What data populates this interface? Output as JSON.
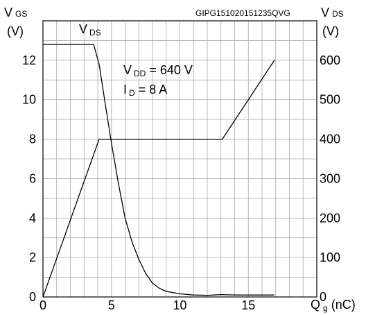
{
  "watermark": "GIPG151020151235QVG",
  "chart_data": {
    "type": "line",
    "left_axis": {
      "label_main": "V",
      "label_sub": "GS",
      "unit": "(V)",
      "range": [
        0,
        14
      ],
      "ticks": [
        0,
        2,
        4,
        6,
        8,
        10,
        12
      ],
      "grid_step": 1
    },
    "right_axis": {
      "label_main": "V",
      "label_sub": "DS",
      "unit": "(V)",
      "range": [
        0,
        700
      ],
      "ticks": [
        0,
        100,
        200,
        300,
        400,
        500,
        600
      ]
    },
    "x_axis": {
      "label_main": "Q",
      "label_sub": "g",
      "unit": "(nC)",
      "range": [
        0,
        20
      ],
      "ticks": [
        0,
        5,
        10,
        15
      ],
      "grid_step": 1
    },
    "grid": true,
    "annotations": [
      {
        "main": "V",
        "sub": "DD",
        "rest": " = 640 V"
      },
      {
        "main": "I",
        "sub": "D",
        "rest": " = 8 A"
      }
    ],
    "series_label": {
      "main": "V",
      "sub": "DS"
    },
    "series": [
      {
        "axis": "left",
        "x": [
          0,
          4.1,
          13.1,
          16.9
        ],
        "y": [
          0,
          8,
          8,
          12
        ]
      },
      {
        "axis": "right",
        "x": [
          0,
          3.7,
          4.1,
          4.5,
          5.0,
          5.5,
          6.0,
          6.5,
          7.0,
          7.5,
          8.0,
          8.5,
          9.0,
          10.0,
          11.0,
          12.0,
          13.0,
          14.0,
          16.9
        ],
        "y": [
          640,
          640,
          590,
          500,
          390,
          290,
          200,
          140,
          95,
          60,
          35,
          22,
          14,
          8,
          5,
          4,
          6,
          5,
          5
        ]
      }
    ]
  }
}
